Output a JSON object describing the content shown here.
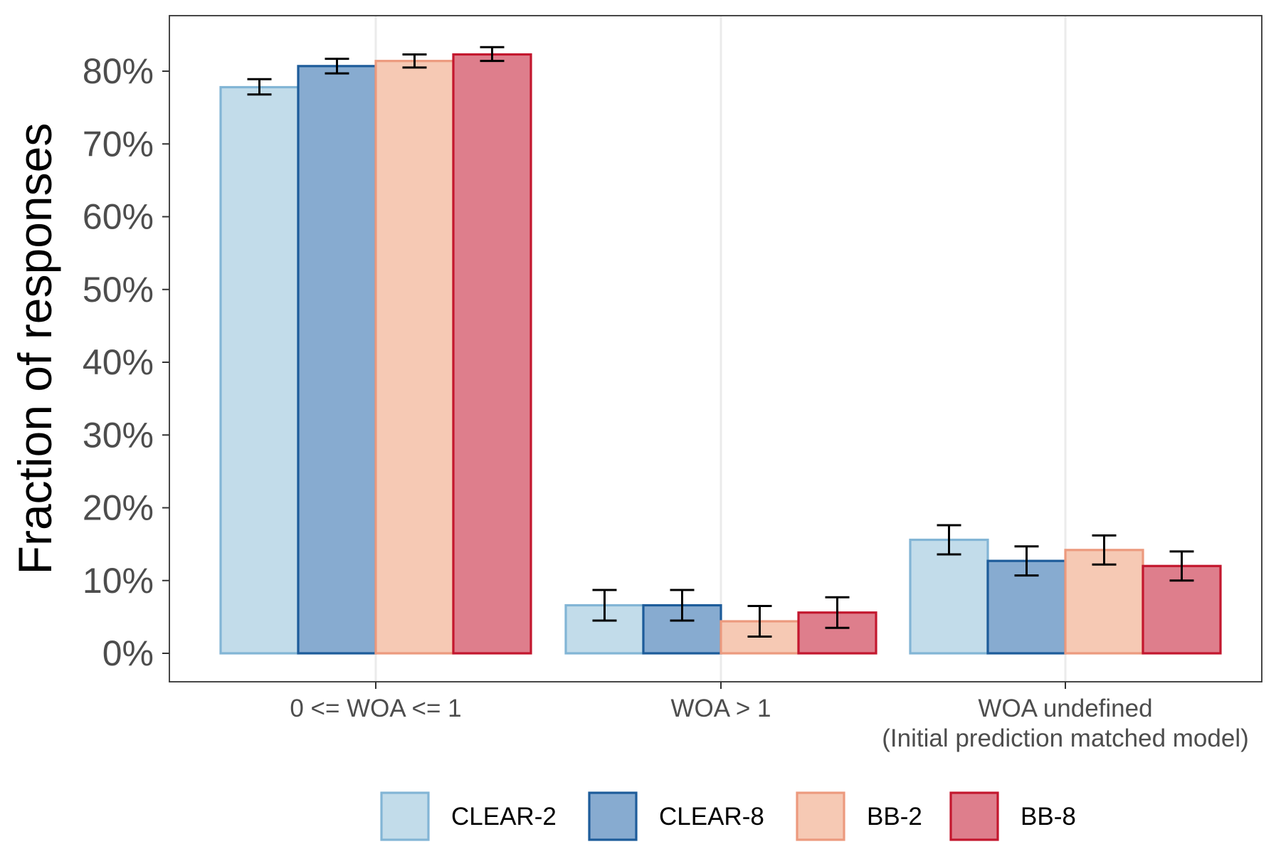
{
  "chart_data": {
    "type": "bar",
    "title": "",
    "xlabel": "",
    "ylabel": "Fraction of responses",
    "ylim": [
      -4,
      87
    ],
    "yticks": [
      0,
      10,
      20,
      30,
      40,
      50,
      60,
      70,
      80
    ],
    "ytick_labels": [
      "0%",
      "10%",
      "20%",
      "30%",
      "40%",
      "50%",
      "60%",
      "70%",
      "80%"
    ],
    "grid": true,
    "legend_position": "bottom",
    "categories": [
      [
        "0 <= WOA <= 1"
      ],
      [
        "WOA > 1"
      ],
      [
        "WOA undefined",
        "(Initial prediction matched model)"
      ]
    ],
    "series": [
      {
        "name": "CLEAR-2",
        "fill": "#c2dcea",
        "stroke": "#82b5d5",
        "values": [
          77.8,
          6.6,
          15.6
        ],
        "err_low": [
          76.8,
          4.5,
          13.6
        ],
        "err_high": [
          78.9,
          8.7,
          17.6
        ]
      },
      {
        "name": "CLEAR-8",
        "fill": "#87abd0",
        "stroke": "#1d5c9a",
        "values": [
          80.7,
          6.6,
          12.7
        ],
        "err_low": [
          79.7,
          4.5,
          10.7
        ],
        "err_high": [
          81.7,
          8.7,
          14.7
        ]
      },
      {
        "name": "BB-2",
        "fill": "#f6c9b4",
        "stroke": "#ec9a7e",
        "values": [
          81.4,
          4.4,
          14.2
        ],
        "err_low": [
          80.5,
          2.3,
          12.2
        ],
        "err_high": [
          82.3,
          6.5,
          16.2
        ]
      },
      {
        "name": "BB-8",
        "fill": "#de7e8c",
        "stroke": "#c3172e",
        "values": [
          82.3,
          5.6,
          12.0
        ],
        "err_low": [
          81.4,
          3.5,
          10.0
        ],
        "err_high": [
          83.3,
          7.7,
          14.0
        ]
      }
    ]
  }
}
